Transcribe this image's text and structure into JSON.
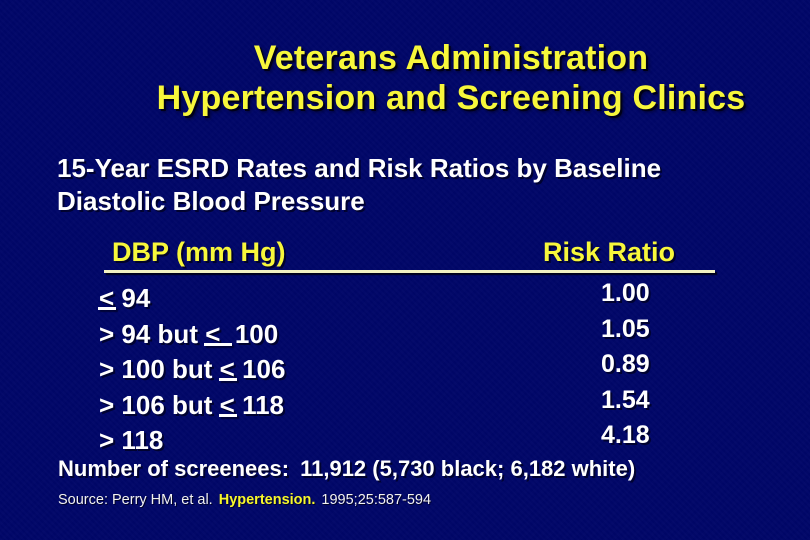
{
  "slide": {
    "title_lines": [
      "Veterans Administration",
      "Hypertension and Screening Clinics"
    ],
    "subtitle_lines": [
      "15-Year ESRD Rates and Risk Ratios by Baseline",
      "Diastolic Blood Pressure"
    ],
    "table": {
      "col1_header": "DBP (mm Hg)",
      "col2_header": "Risk Ratio",
      "rows": [
        {
          "dbp": [
            {
              "t": "<",
              "u": "narrow"
            },
            {
              "t": " 94"
            }
          ],
          "ratio": "1.00"
        },
        {
          "dbp": [
            {
              "t": "> 94 but "
            },
            {
              "t": "<",
              "u": "wide"
            },
            {
              "t": "  100"
            }
          ],
          "ratio": "1.05"
        },
        {
          "dbp": [
            {
              "t": "> 100 but "
            },
            {
              "t": "<",
              "u": "narrow"
            },
            {
              "t": " 106"
            }
          ],
          "ratio": "0.89"
        },
        {
          "dbp": [
            {
              "t": "> 106 but "
            },
            {
              "t": "<",
              "u": "narrow"
            },
            {
              "t": " 118"
            }
          ],
          "ratio": "1.54"
        },
        {
          "dbp": [
            {
              "t": "> 118"
            }
          ],
          "ratio": "4.18"
        }
      ]
    },
    "screenees": {
      "label": "Number of screenees:",
      "value": "11,912 (5,730 black; 6,182 white)"
    },
    "source": {
      "prefix": "Source: Perry HM, et al.",
      "journal": "Hypertension.",
      "citation": "1995;25:587-594"
    }
  },
  "chart_data": {
    "type": "table",
    "title": "15-Year ESRD Rates and Risk Ratios by Baseline Diastolic Blood Pressure",
    "columns": [
      "DBP (mm Hg)",
      "Risk Ratio"
    ],
    "categories": [
      "<= 94",
      "> 94 but <= 100",
      "> 100 but <= 106",
      "> 106 but <= 118",
      "> 118"
    ],
    "values": [
      1.0,
      1.05,
      0.89,
      1.54,
      4.18
    ]
  },
  "colors": {
    "background": "#000668",
    "title_yellow": "#F7F73B",
    "body_white": "#FFFFFF",
    "header_rule": "#F2F2C2"
  }
}
